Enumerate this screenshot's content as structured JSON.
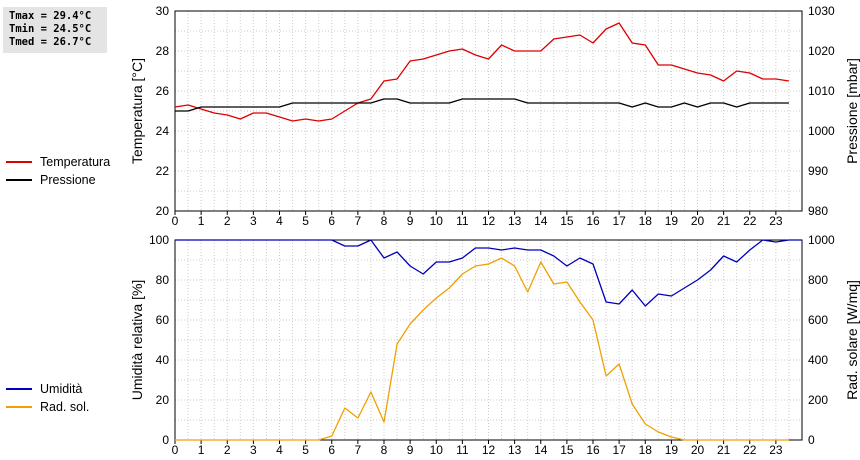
{
  "stats": {
    "tmax": "Tmax = 29.4°C",
    "tmin": "Tmin = 24.5°C",
    "tmed": "Tmed = 26.7°C"
  },
  "colors": {
    "red": "#dd0000",
    "black": "#000000",
    "blue": "#0000bb",
    "orange": "#f0a000",
    "grid": "#cccccc"
  },
  "chart_data": [
    {
      "type": "line",
      "ylabel_left": "Temperatura [°C]",
      "ylabel_right": "Pressione [mbar]",
      "xlim": [
        0,
        24
      ],
      "x_ticks": [
        "0",
        "1",
        "2",
        "3",
        "4",
        "5",
        "6",
        "7",
        "8",
        "9",
        "10",
        "11",
        "12",
        "13",
        "14",
        "15",
        "16",
        "17",
        "18",
        "19",
        "20",
        "21",
        "22",
        "23"
      ],
      "ylim_left": [
        20,
        30
      ],
      "y_ticks_left": [
        "20",
        "22",
        "24",
        "26",
        "28",
        "30"
      ],
      "ylim_right": [
        980,
        1030
      ],
      "y_ticks_right": [
        "980",
        "990",
        "1000",
        "1010",
        "1020",
        "1030"
      ],
      "grid": true,
      "legend": "left",
      "series": [
        {
          "name": "Temperatura",
          "axis": "left",
          "color": "#dd0000",
          "x": [
            0,
            0.5,
            1,
            1.5,
            2,
            2.5,
            3,
            3.5,
            4,
            4.5,
            5,
            5.5,
            6,
            6.5,
            7,
            7.5,
            8,
            8.5,
            9,
            9.5,
            10,
            10.5,
            11,
            11.5,
            12,
            12.5,
            13,
            13.5,
            14,
            14.5,
            15,
            15.5,
            16,
            16.5,
            17,
            17.5,
            18,
            18.5,
            19,
            19.5,
            20,
            20.5,
            21,
            21.5,
            22,
            22.5,
            23,
            23.5
          ],
          "values": [
            25.2,
            25.3,
            25.1,
            24.9,
            24.8,
            24.6,
            24.9,
            24.9,
            24.7,
            24.5,
            24.6,
            24.5,
            24.6,
            25.0,
            25.4,
            25.6,
            26.5,
            26.6,
            27.5,
            27.6,
            27.8,
            28.0,
            28.1,
            27.8,
            27.6,
            28.3,
            28.0,
            28.0,
            28.0,
            28.6,
            28.7,
            28.8,
            28.4,
            29.1,
            29.4,
            28.4,
            28.3,
            27.3,
            27.3,
            27.1,
            26.9,
            26.8,
            26.5,
            27.0,
            26.9,
            26.6,
            26.6,
            26.5
          ]
        },
        {
          "name": "Pressione",
          "axis": "right",
          "color": "#000000",
          "x": [
            0,
            0.5,
            1,
            1.5,
            2,
            2.5,
            3,
            3.5,
            4,
            4.5,
            5,
            5.5,
            6,
            6.5,
            7,
            7.5,
            8,
            8.5,
            9,
            9.5,
            10,
            10.5,
            11,
            11.5,
            12,
            12.5,
            13,
            13.5,
            14,
            14.5,
            15,
            15.5,
            16,
            16.5,
            17,
            17.5,
            18,
            18.5,
            19,
            19.5,
            20,
            20.5,
            21,
            21.5,
            22,
            22.5,
            23,
            23.5
          ],
          "values": [
            1005,
            1005,
            1006,
            1006,
            1006,
            1006,
            1006,
            1006,
            1006,
            1007,
            1007,
            1007,
            1007,
            1007,
            1007,
            1007,
            1008,
            1008,
            1007,
            1007,
            1007,
            1007,
            1008,
            1008,
            1008,
            1008,
            1008,
            1007,
            1007,
            1007,
            1007,
            1007,
            1007,
            1007,
            1007,
            1006,
            1007,
            1006,
            1006,
            1007,
            1006,
            1007,
            1007,
            1006,
            1007,
            1007,
            1007,
            1007
          ]
        }
      ]
    },
    {
      "type": "line",
      "ylabel_left": "Umidità relativa [%]",
      "ylabel_right": "Rad. solare [W/mq]",
      "xlim": [
        0,
        24
      ],
      "x_ticks": [
        "0",
        "1",
        "2",
        "3",
        "4",
        "5",
        "6",
        "7",
        "8",
        "9",
        "10",
        "11",
        "12",
        "13",
        "14",
        "15",
        "16",
        "17",
        "18",
        "19",
        "20",
        "21",
        "22",
        "23"
      ],
      "ylim_left": [
        0,
        100
      ],
      "y_ticks_left": [
        "0",
        "20",
        "40",
        "60",
        "80",
        "100"
      ],
      "ylim_right": [
        0,
        1000
      ],
      "y_ticks_right": [
        "0",
        "200",
        "400",
        "600",
        "800",
        "1000"
      ],
      "grid": true,
      "legend": "left",
      "series": [
        {
          "name": "Umidità",
          "axis": "left",
          "color": "#0000bb",
          "x": [
            0,
            0.5,
            1,
            1.5,
            2,
            2.5,
            3,
            3.5,
            4,
            4.5,
            5,
            5.5,
            6,
            6.5,
            7,
            7.5,
            8,
            8.5,
            9,
            9.5,
            10,
            10.5,
            11,
            11.5,
            12,
            12.5,
            13,
            13.5,
            14,
            14.5,
            15,
            15.5,
            16,
            16.5,
            17,
            17.5,
            18,
            18.5,
            19,
            19.5,
            20,
            20.5,
            21,
            21.5,
            22,
            22.5,
            23,
            23.5,
            24
          ],
          "values": [
            100,
            100,
            100,
            100,
            100,
            100,
            100,
            100,
            100,
            100,
            100,
            100,
            100,
            97,
            97,
            100,
            91,
            94,
            87,
            83,
            89,
            89,
            91,
            96,
            96,
            95,
            96,
            95,
            95,
            92,
            87,
            91,
            88,
            69,
            68,
            75,
            67,
            73,
            72,
            76,
            80,
            85,
            92,
            89,
            95,
            100,
            99,
            100,
            100
          ]
        },
        {
          "name": "Rad. sol.",
          "axis": "right",
          "color": "#f0a000",
          "x": [
            0,
            0.5,
            1,
            1.5,
            2,
            2.5,
            3,
            3.5,
            4,
            4.5,
            5,
            5.5,
            6,
            6.5,
            7,
            7.5,
            8,
            8.5,
            9,
            9.5,
            10,
            10.5,
            11,
            11.5,
            12,
            12.5,
            13,
            13.5,
            14,
            14.5,
            15,
            15.5,
            16,
            16.5,
            17,
            17.5,
            18,
            18.5,
            19,
            19.5,
            20,
            20.5,
            21,
            21.5,
            22,
            22.5,
            23,
            23.5
          ],
          "values": [
            0,
            0,
            0,
            0,
            0,
            0,
            0,
            0,
            0,
            0,
            0,
            0,
            20,
            160,
            110,
            240,
            90,
            480,
            580,
            650,
            710,
            760,
            830,
            870,
            880,
            910,
            870,
            740,
            890,
            780,
            790,
            690,
            600,
            320,
            380,
            180,
            80,
            40,
            15,
            0,
            0,
            0,
            0,
            0,
            0,
            0,
            0,
            0
          ]
        }
      ]
    }
  ]
}
